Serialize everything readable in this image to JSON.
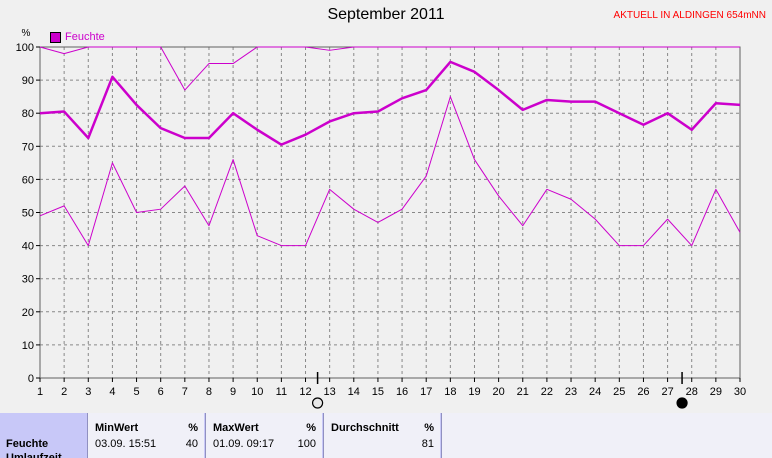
{
  "title": "September 2011",
  "station": "AKTUELL IN ALDINGEN 654mNN",
  "legend_label": "Feuchte",
  "unit_label": "%",
  "colors": {
    "series": "#cc00cc",
    "grid": "#888888",
    "background": "#f0f0f0"
  },
  "chart_data": {
    "type": "line",
    "title": "September 2011",
    "ylabel": "%",
    "xlabel": "",
    "ylim": [
      0,
      100
    ],
    "yticks": [
      0,
      10,
      20,
      30,
      40,
      50,
      60,
      70,
      80,
      90,
      100
    ],
    "x": [
      1,
      2,
      3,
      4,
      5,
      6,
      7,
      8,
      9,
      10,
      11,
      12,
      13,
      14,
      15,
      16,
      17,
      18,
      19,
      20,
      21,
      22,
      23,
      24,
      25,
      26,
      27,
      28,
      29,
      30
    ],
    "grid": true,
    "legend_position": "top-left",
    "moon_markers": [
      {
        "day": 12.5,
        "phase": "full-moon"
      },
      {
        "day": 27.6,
        "phase": "new-moon"
      }
    ],
    "series": [
      {
        "name": "Feuchte",
        "role": "max",
        "values": [
          100,
          98,
          100,
          100,
          100,
          100,
          87,
          95,
          95,
          100,
          100,
          100,
          99,
          100,
          100,
          100,
          100,
          100,
          100,
          100,
          100,
          100,
          100,
          100,
          100,
          100,
          100,
          100,
          100,
          100
        ]
      },
      {
        "name": "Feuchte",
        "role": "avg",
        "values": [
          80,
          80.5,
          72.5,
          91,
          82.5,
          75.5,
          72.5,
          72.5,
          80,
          75,
          70.5,
          73.5,
          77.5,
          80,
          80.5,
          84.5,
          87,
          95.5,
          92.5,
          87,
          81,
          84,
          83.5,
          83.5,
          80,
          76.5,
          80,
          75,
          83,
          82.5
        ]
      },
      {
        "name": "Feuchte",
        "role": "min",
        "values": [
          49,
          52,
          40,
          65,
          50,
          51,
          58,
          46,
          66,
          43,
          40,
          40,
          57,
          51,
          47,
          51,
          61,
          85,
          66,
          55,
          46,
          57,
          54,
          48,
          40,
          40,
          48,
          40,
          57,
          44
        ]
      }
    ]
  },
  "stats": {
    "row_label": "Feuchte",
    "row2_label": "Umlaufzeit",
    "min": {
      "header": "MinWert",
      "unit": "%",
      "time": "03.09.  15:51",
      "value": "40"
    },
    "max": {
      "header": "MaxWert",
      "unit": "%",
      "time": "01.09.  09:17",
      "value": "100"
    },
    "avg": {
      "header": "Durchschnitt",
      "unit": "%",
      "value": "81"
    }
  }
}
